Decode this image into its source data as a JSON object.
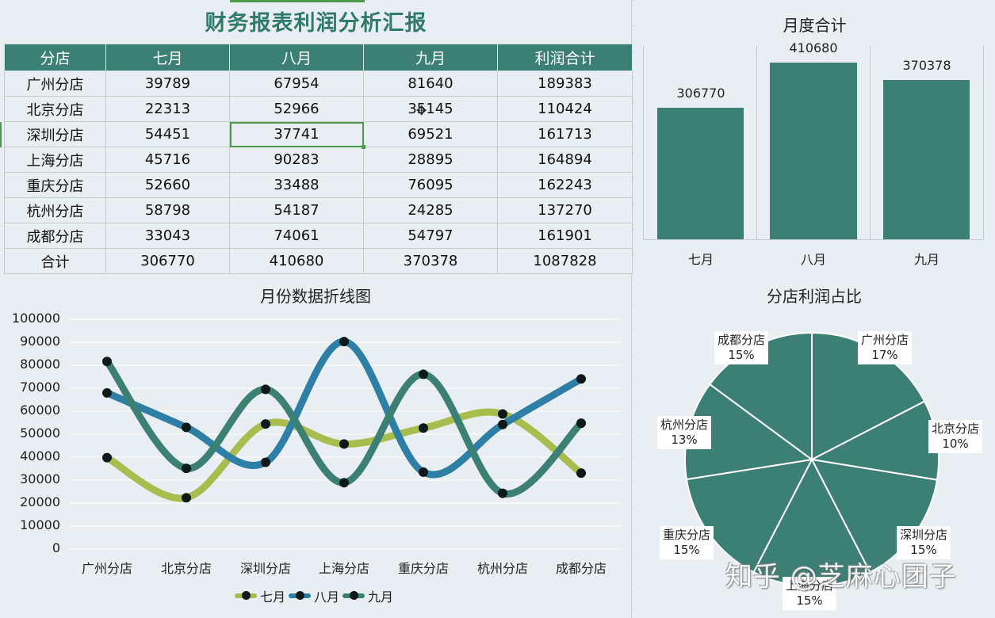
{
  "report": {
    "title": "财务报表利润分析汇报",
    "columns": [
      "分店",
      "七月",
      "八月",
      "九月",
      "利润合计"
    ],
    "rows": [
      [
        "广州分店",
        "39789",
        "67954",
        "81640",
        "189383"
      ],
      [
        "北京分店",
        "22313",
        "52966",
        "35145",
        "110424"
      ],
      [
        "深圳分店",
        "54451",
        "37741",
        "69521",
        "161713"
      ],
      [
        "上海分店",
        "45716",
        "90283",
        "28895",
        "164894"
      ],
      [
        "重庆分店",
        "52660",
        "33488",
        "76095",
        "162243"
      ],
      [
        "杭州分店",
        "58798",
        "54187",
        "24285",
        "137270"
      ],
      [
        "成都分店",
        "33043",
        "74061",
        "54797",
        "161901"
      ]
    ],
    "total_row": [
      "合计",
      "306770",
      "410680",
      "370378",
      "1087828"
    ],
    "selected_cell": {
      "row": 2,
      "col": 2
    }
  },
  "colors": {
    "brand_teal": "#3c7f74",
    "title_teal": "#2f7a6d",
    "jul_line": "#a9bd4f",
    "aug_line": "#2e7fa6",
    "sep_line": "#3c7f74",
    "marker": "#0d1a1a",
    "selection_green": "#4a9a4a"
  },
  "watermark": "知乎 @芝麻心团子",
  "chart_data": [
    {
      "type": "bar",
      "title": "月度合计",
      "categories": [
        "七月",
        "八月",
        "九月"
      ],
      "values": [
        306770,
        410680,
        370378
      ],
      "value_labels": [
        "306770",
        "410680",
        "370378"
      ],
      "xlabel": "",
      "ylabel": "",
      "grid": "vertical separators",
      "legend": "none"
    },
    {
      "type": "line",
      "title": "月份数据折线图",
      "smooth": true,
      "categories": [
        "广州分店",
        "北京分店",
        "深圳分店",
        "上海分店",
        "重庆分店",
        "杭州分店",
        "成都分店"
      ],
      "series": [
        {
          "name": "七月",
          "values": [
            39789,
            22313,
            54451,
            45716,
            52660,
            58798,
            33043
          ]
        },
        {
          "name": "八月",
          "values": [
            67954,
            52966,
            37741,
            90283,
            33488,
            54187,
            74061
          ]
        },
        {
          "name": "九月",
          "values": [
            81640,
            35145,
            69521,
            28895,
            76095,
            24285,
            54797
          ]
        }
      ],
      "yticks": [
        "0",
        "10000",
        "20000",
        "30000",
        "40000",
        "50000",
        "60000",
        "70000",
        "80000",
        "90000",
        "100000"
      ],
      "ylim": [
        0,
        100000
      ],
      "grid": true,
      "legend_position": "bottom"
    },
    {
      "type": "pie",
      "title": "分店利润占比",
      "labels": [
        "广州分店",
        "北京分店",
        "深圳分店",
        "上海分店",
        "重庆分店",
        "杭州分店",
        "成都分店"
      ],
      "values": [
        189383,
        110424,
        161713,
        164894,
        162243,
        137270,
        161901
      ],
      "percent_labels": [
        "17%",
        "10%",
        "15%",
        "15%",
        "15%",
        "13%",
        "15%"
      ]
    }
  ]
}
